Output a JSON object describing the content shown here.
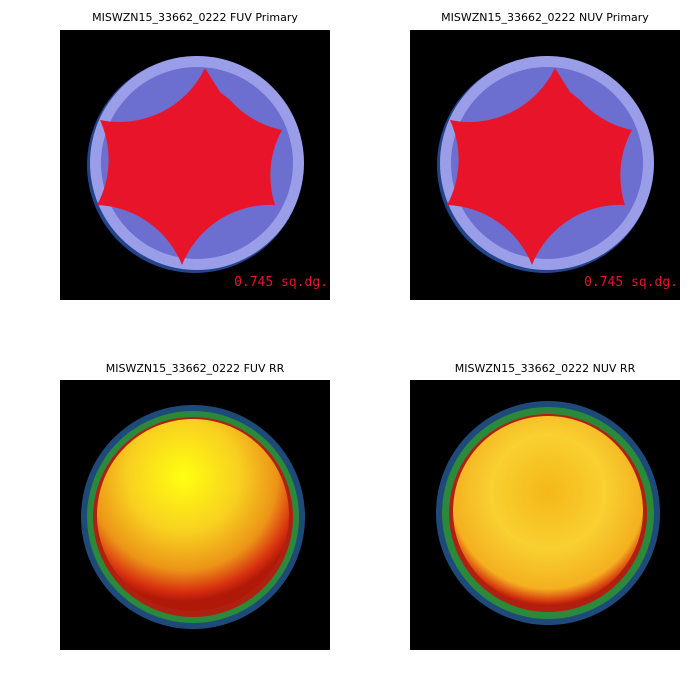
{
  "panels": [
    {
      "title": "MISWZN15_33662_0222 FUV Primary",
      "annotation": "0.745 sq.dg."
    },
    {
      "title": "MISWZN15_33662_0222 NUV Primary",
      "annotation": "0.745 sq.dg."
    },
    {
      "title": "MISWZN15_33662_0222 FUV RR"
    },
    {
      "title": "MISWZN15_33662_0222 NUV RR"
    }
  ]
}
